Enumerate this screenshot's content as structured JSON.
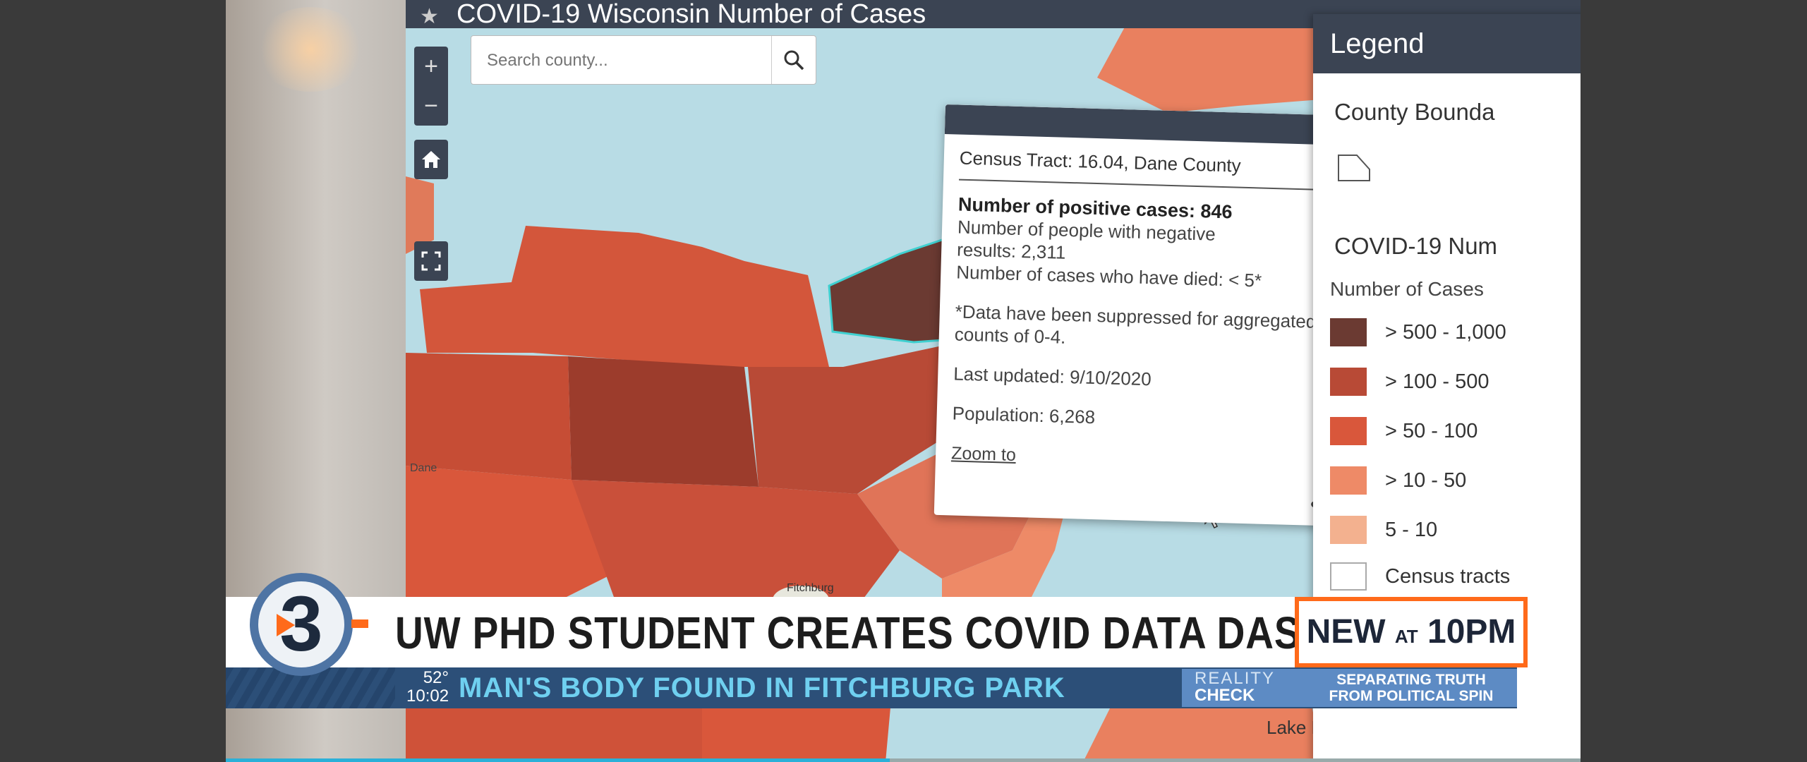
{
  "app": {
    "title": "COVID-19 Wisconsin Number of Cases"
  },
  "search": {
    "placeholder": "Search county..."
  },
  "popup": {
    "title": "Census Tract: 16.04, Dane County",
    "positive_cases": "Number of positive cases: 846",
    "negative_line1": "Number of people with negative",
    "negative_line2": "results: 2,311",
    "died": "Number of cases who have died: < 5*",
    "note_line1": "*Data have been suppressed for aggregated",
    "note_line2": "counts of 0-4.",
    "last_updated": "Last updated: 9/10/2020",
    "population": "Population: 6,268",
    "zoom_to": "Zoom to",
    "more": "•••"
  },
  "legend": {
    "title": "Legend",
    "section1": "County Bounda",
    "section2": "COVID-19 Num",
    "subtitle": "Number of Cases",
    "classes": [
      {
        "label": "> 500 - 1,000",
        "color": "#6b3a32"
      },
      {
        "label": "> 100 - 500",
        "color": "#b84a36"
      },
      {
        "label": "> 50 - 100",
        "color": "#d9573b"
      },
      {
        "label": "> 10 - 50",
        "color": "#ee8a67"
      },
      {
        "label": "5 - 10",
        "color": "#f3b18f"
      }
    ],
    "census_tracts": "Census tracts"
  },
  "map_labels": {
    "lake": "Lake M",
    "dane": "Dane",
    "fitchburg": "Fitchburg"
  },
  "broadcast": {
    "channel": "3",
    "headline": "UW PHD STUDENT CREATES COVID DATA DASHBOARD",
    "new_at": "NEW",
    "new_at_small": "AT",
    "new_time": "10PM",
    "temperature": "52°",
    "time": "10:02",
    "ticker": "MAN'S BODY FOUND IN FITCHBURG PARK",
    "segment_line1": "REALITY",
    "segment_line2": "CHECK",
    "tagline_line1": "SEPARATING TRUTH",
    "tagline_line2": "FROM POLITICAL SPIN"
  },
  "video": {
    "progress": 0.49
  }
}
